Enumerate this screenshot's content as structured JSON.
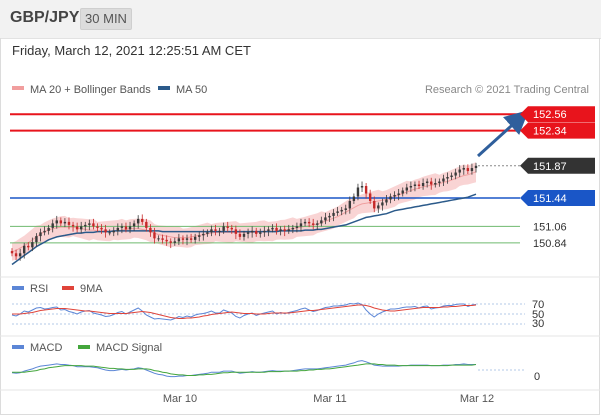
{
  "header": {
    "pair": "GBP/JPY",
    "timeframe": "30 MIN"
  },
  "timestamp": "Friday, March 12, 2021 12:25:51 AM CET",
  "colors": {
    "resistance": "#e8141c",
    "support_blue": "#1a56c7",
    "support_green": "#6fba6f",
    "current": "#333333",
    "ma50": "#2b5a8a",
    "bands": "#f7c6c6",
    "rsi": "#5c86d6",
    "ma9": "#e0443a",
    "macd": "#5c86d6",
    "signal": "#44a63c",
    "arrow": "#2f5f9c"
  },
  "legend": {
    "bollinger_label": "MA 20 + Bollinger Bands",
    "ma50_label": "MA 50",
    "credit": "Research © 2021 Trading Central"
  },
  "rsi_panel": {
    "rsi_label": "RSI",
    "ma_label": "9MA",
    "levels": [
      "70",
      "50",
      "30"
    ]
  },
  "macd_panel": {
    "macd_label": "MACD",
    "signal_label": "MACD Signal",
    "zero_label": "0"
  },
  "x_axis": {
    "ticks": [
      "Mar 10",
      "Mar 11",
      "Mar 12"
    ]
  },
  "chart_data": {
    "type": "candlestick",
    "ylim": [
      150.45,
      152.75
    ],
    "levels": [
      {
        "value": 152.56,
        "label": "152.56",
        "kind": "resistance"
      },
      {
        "value": 152.34,
        "label": "152.34",
        "kind": "resistance"
      },
      {
        "value": 151.87,
        "label": "151.87",
        "kind": "current"
      },
      {
        "value": 151.44,
        "label": "151.44",
        "kind": "support"
      },
      {
        "value": 151.06,
        "label": "151.06",
        "kind": "support-minor"
      },
      {
        "value": 150.84,
        "label": "150.84",
        "kind": "support-minor"
      }
    ],
    "close": [
      150.7,
      150.66,
      150.7,
      150.8,
      150.78,
      150.85,
      150.93,
      150.98,
      151.0,
      151.04,
      151.1,
      151.14,
      151.1,
      151.12,
      151.08,
      151.06,
      151.02,
      151.06,
      151.08,
      151.1,
      151.06,
      151.04,
      151.02,
      150.98,
      150.98,
      151.0,
      151.04,
      151.06,
      151.02,
      151.06,
      151.1,
      151.16,
      151.12,
      151.04,
      150.98,
      150.9,
      150.9,
      150.88,
      150.86,
      150.84,
      150.86,
      150.9,
      150.88,
      150.9,
      150.88,
      150.92,
      150.94,
      150.96,
      150.98,
      151.02,
      151.0,
      151.0,
      151.06,
      151.04,
      151.02,
      150.96,
      150.92,
      150.96,
      150.98,
      151.0,
      150.96,
      150.98,
      151.0,
      151.02,
      151.04,
      151.0,
      151.02,
      151.0,
      151.02,
      151.04,
      151.06,
      151.1,
      151.12,
      151.1,
      151.08,
      151.1,
      151.14,
      151.18,
      151.2,
      151.24,
      151.26,
      151.28,
      151.3,
      151.4,
      151.46,
      151.58,
      151.6,
      151.5,
      151.4,
      151.3,
      151.34,
      151.38,
      151.42,
      151.46,
      151.48,
      151.5,
      151.54,
      151.58,
      151.6,
      151.62,
      151.6,
      151.64,
      151.66,
      151.62,
      151.64,
      151.66,
      151.7,
      151.72,
      151.74,
      151.78,
      151.82,
      151.84,
      151.8,
      151.84,
      151.87
    ],
    "bb_mid": [
      150.72,
      150.74,
      150.77,
      150.8,
      150.84,
      150.88,
      150.92,
      150.96,
      150.99,
      151.01,
      151.03,
      151.04,
      151.05,
      151.05,
      151.05,
      151.05,
      151.04,
      151.03,
      151.02,
      151.01,
      151.01,
      151.0,
      151.0,
      151.0,
      151.0,
      151.0,
      151.0,
      151.01,
      151.02,
      151.03,
      151.03,
      151.03,
      151.02,
      151.01,
      150.99,
      150.97,
      150.95,
      150.94,
      150.93,
      150.92,
      150.91,
      150.91,
      150.91,
      150.91,
      150.92,
      150.93,
      150.94,
      150.95,
      150.96,
      150.97,
      150.98,
      150.98,
      150.98,
      150.98,
      150.98,
      150.98,
      150.98,
      150.98,
      150.98,
      150.98,
      150.98,
      150.99,
      150.99,
      151.0,
      151.0,
      151.0,
      151.01,
      151.01,
      151.02,
      151.03,
      151.04,
      151.05,
      151.06,
      151.07,
      151.08,
      151.09,
      151.11,
      151.13,
      151.15,
      151.17,
      151.19,
      151.22,
      151.25,
      151.28,
      151.31,
      151.34,
      151.36,
      151.37,
      151.38,
      151.39,
      151.4,
      151.41,
      151.42,
      151.44,
      151.46,
      151.48,
      151.5,
      151.52,
      151.54,
      151.56,
      151.57,
      151.59,
      151.6,
      151.61,
      151.62,
      151.63,
      151.65,
      151.66,
      151.68,
      151.7,
      151.72,
      151.74,
      151.75,
      151.77,
      151.79
    ],
    "ma50": [
      150.55,
      150.59,
      150.63,
      150.67,
      150.71,
      150.75,
      150.79,
      150.82,
      150.85,
      150.88,
      150.9,
      150.92,
      150.93,
      150.94,
      150.95,
      150.96,
      150.97,
      150.97,
      150.98,
      150.98,
      150.98,
      150.99,
      150.99,
      150.99,
      150.99,
      151.0,
      151.0,
      151.0,
      151.0,
      151.0,
      151.0,
      151.0,
      151.0,
      151.0,
      151.0,
      151.0,
      151.0,
      150.99,
      150.99,
      150.99,
      150.99,
      150.99,
      150.99,
      150.99,
      150.99,
      150.99,
      150.99,
      150.99,
      150.99,
      150.99,
      150.99,
      150.99,
      150.99,
      150.99,
      150.99,
      150.99,
      150.99,
      150.99,
      150.99,
      150.99,
      150.99,
      150.99,
      150.99,
      150.99,
      150.99,
      150.99,
      151.0,
      151.0,
      151.0,
      151.0,
      151.0,
      151.0,
      151.01,
      151.01,
      151.01,
      151.02,
      151.02,
      151.03,
      151.04,
      151.05,
      151.06,
      151.07,
      151.08,
      151.1,
      151.12,
      151.14,
      151.16,
      151.18,
      151.19,
      151.2,
      151.21,
      151.22,
      151.23,
      151.25,
      151.27,
      151.28,
      151.29,
      151.3,
      151.31,
      151.32,
      151.33,
      151.34,
      151.35,
      151.36,
      151.37,
      151.38,
      151.39,
      151.4,
      151.41,
      151.42,
      151.43,
      151.44,
      151.45,
      151.47,
      151.49
    ],
    "rsi": [
      48,
      46,
      50,
      56,
      54,
      58,
      62,
      63,
      60,
      61,
      63,
      64,
      58,
      59,
      55,
      53,
      50,
      54,
      56,
      57,
      52,
      50,
      48,
      45,
      46,
      49,
      53,
      55,
      50,
      54,
      58,
      62,
      56,
      48,
      44,
      40,
      41,
      40,
      39,
      38,
      41,
      45,
      43,
      46,
      44,
      48,
      50,
      51,
      53,
      56,
      52,
      52,
      58,
      55,
      52,
      45,
      42,
      47,
      50,
      52,
      47,
      50,
      52,
      54,
      56,
      50,
      53,
      51,
      53,
      55,
      57,
      60,
      62,
      58,
      55,
      57,
      60,
      63,
      64,
      66,
      66,
      67,
      68,
      71,
      70,
      72,
      69,
      58,
      50,
      44,
      50,
      54,
      57,
      60,
      60,
      61,
      63,
      64,
      64,
      65,
      62,
      65,
      66,
      60,
      62,
      63,
      66,
      67,
      67,
      69,
      70,
      70,
      65,
      68,
      69
    ],
    "rsi_ma": [
      50,
      50,
      50,
      51,
      52,
      53,
      55,
      57,
      58,
      59,
      60,
      61,
      61,
      61,
      60,
      59,
      58,
      57,
      56,
      56,
      55,
      54,
      53,
      52,
      51,
      51,
      51,
      51,
      51,
      52,
      53,
      54,
      55,
      54,
      53,
      51,
      49,
      47,
      45,
      43,
      42,
      41,
      41,
      42,
      42,
      43,
      44,
      46,
      47,
      49,
      50,
      51,
      52,
      53,
      54,
      53,
      52,
      51,
      51,
      51,
      50,
      50,
      50,
      51,
      52,
      52,
      52,
      52,
      52,
      53,
      54,
      55,
      56,
      57,
      57,
      58,
      59,
      60,
      61,
      62,
      63,
      64,
      65,
      66,
      67,
      68,
      68,
      67,
      65,
      62,
      60,
      58,
      57,
      56,
      56,
      57,
      58,
      59,
      60,
      61,
      62,
      63,
      63,
      63,
      63,
      63,
      64,
      64,
      65,
      65,
      66,
      67,
      67,
      67,
      68
    ],
    "macd": [
      -0.05,
      -0.06,
      -0.05,
      -0.02,
      0.0,
      0.02,
      0.05,
      0.07,
      0.08,
      0.09,
      0.1,
      0.11,
      0.1,
      0.1,
      0.09,
      0.08,
      0.06,
      0.06,
      0.06,
      0.06,
      0.05,
      0.04,
      0.02,
      0.0,
      -0.01,
      -0.01,
      0.0,
      0.01,
      0.0,
      0.01,
      0.02,
      0.04,
      0.03,
      0.0,
      -0.03,
      -0.06,
      -0.08,
      -0.09,
      -0.11,
      -0.12,
      -0.12,
      -0.11,
      -0.11,
      -0.1,
      -0.1,
      -0.09,
      -0.08,
      -0.07,
      -0.06,
      -0.04,
      -0.04,
      -0.04,
      -0.02,
      -0.02,
      -0.02,
      -0.04,
      -0.06,
      -0.05,
      -0.04,
      -0.03,
      -0.04,
      -0.04,
      -0.03,
      -0.02,
      -0.01,
      -0.02,
      -0.02,
      -0.02,
      -0.02,
      -0.01,
      0.0,
      0.01,
      0.02,
      0.02,
      0.02,
      0.02,
      0.03,
      0.04,
      0.05,
      0.06,
      0.07,
      0.08,
      0.09,
      0.11,
      0.13,
      0.16,
      0.17,
      0.15,
      0.12,
      0.09,
      0.08,
      0.07,
      0.07,
      0.07,
      0.07,
      0.07,
      0.08,
      0.08,
      0.09,
      0.09,
      0.09,
      0.09,
      0.09,
      0.08,
      0.08,
      0.08,
      0.09,
      0.09,
      0.09,
      0.1,
      0.1,
      0.11,
      0.1,
      0.1,
      0.1
    ],
    "macd_signal": [
      -0.04,
      -0.04,
      -0.04,
      -0.04,
      -0.03,
      -0.02,
      -0.01,
      0.01,
      0.02,
      0.04,
      0.05,
      0.06,
      0.07,
      0.08,
      0.08,
      0.08,
      0.08,
      0.08,
      0.07,
      0.07,
      0.07,
      0.06,
      0.05,
      0.04,
      0.03,
      0.03,
      0.02,
      0.02,
      0.01,
      0.01,
      0.01,
      0.02,
      0.02,
      0.02,
      0.01,
      -0.01,
      -0.02,
      -0.04,
      -0.05,
      -0.07,
      -0.08,
      -0.09,
      -0.09,
      -0.1,
      -0.1,
      -0.1,
      -0.09,
      -0.09,
      -0.08,
      -0.08,
      -0.07,
      -0.06,
      -0.05,
      -0.05,
      -0.04,
      -0.04,
      -0.04,
      -0.04,
      -0.04,
      -0.04,
      -0.04,
      -0.04,
      -0.04,
      -0.03,
      -0.03,
      -0.03,
      -0.03,
      -0.02,
      -0.02,
      -0.02,
      -0.02,
      -0.01,
      -0.01,
      0.0,
      0.0,
      0.01,
      0.01,
      0.02,
      0.02,
      0.03,
      0.04,
      0.05,
      0.06,
      0.07,
      0.08,
      0.09,
      0.1,
      0.11,
      0.11,
      0.11,
      0.1,
      0.1,
      0.09,
      0.09,
      0.09,
      0.08,
      0.08,
      0.08,
      0.08,
      0.08,
      0.08,
      0.08,
      0.08,
      0.08,
      0.08,
      0.08,
      0.08,
      0.08,
      0.09,
      0.09,
      0.09,
      0.09,
      0.09,
      0.09,
      0.1
    ]
  }
}
